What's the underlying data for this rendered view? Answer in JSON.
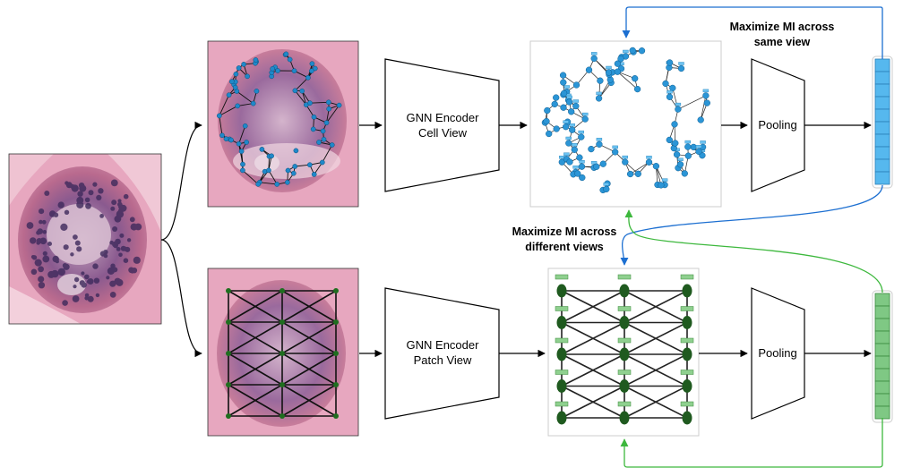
{
  "encoders": {
    "cell": {
      "line1": "GNN Encoder",
      "line2": "Cell View"
    },
    "patch": {
      "line1": "GNN Encoder",
      "line2": "Patch View"
    }
  },
  "pooling": {
    "top": "Pooling",
    "bottom": "Pooling"
  },
  "annotations": {
    "same_view": {
      "line1": "Maximize MI across",
      "line2": "same view"
    },
    "different_views": {
      "line1": "Maximize MI across",
      "line2": "different views"
    }
  },
  "colors": {
    "cell_graph": "#1f88c9",
    "patch_graph": "#1f5a1f",
    "blue_arrow": "#1c6fd1",
    "green_arrow": "#3db83d",
    "embedding_blue": "#56b8ee",
    "embedding_green": "#7fc884",
    "tissue_pink": "#c9738f",
    "nuclei_purple": "#4a2f66"
  },
  "icons": {
    "input_image": "tissue-histology-image",
    "cell_image": "cell-graph-overlay-image",
    "patch_image": "patch-graph-overlay-image"
  }
}
